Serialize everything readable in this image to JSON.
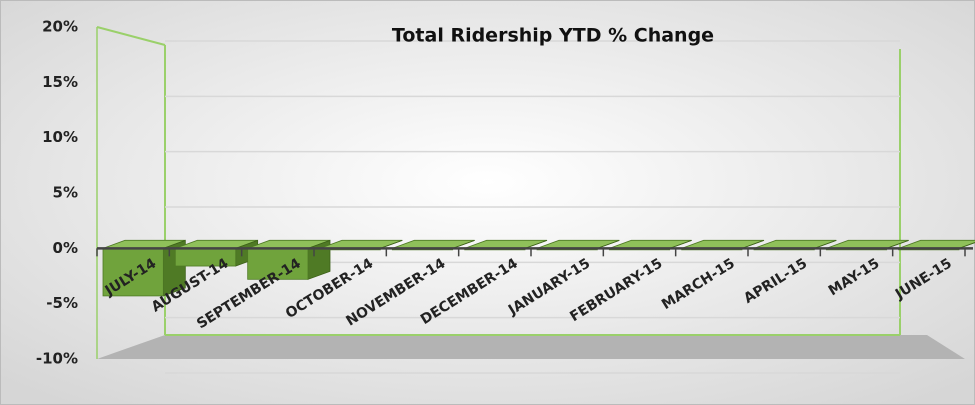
{
  "chart_data": {
    "type": "bar3d",
    "title": "Total Ridership YTD % Change",
    "categories": [
      "JULY-14",
      "AUGUST-14",
      "SEPTEMBER-14",
      "OCTOBER-14",
      "NOVEMBER-14",
      "DECEMBER-14",
      "JANUARY-15",
      "FEBRUARY-15",
      "MARCH-15",
      "APRIL-15",
      "MAY-15",
      "JUNE-15"
    ],
    "values": [
      -4.3,
      -1.6,
      -2.8,
      0,
      0,
      0,
      0,
      0,
      0,
      0,
      0,
      0
    ],
    "color": "#70a33c",
    "ylim": [
      -10,
      20
    ],
    "yticks": [
      {
        "value": -10,
        "label": "-10%"
      },
      {
        "value": -5,
        "label": "-5%"
      },
      {
        "value": 0,
        "label": "0%"
      },
      {
        "value": 5,
        "label": "5%"
      },
      {
        "value": 10,
        "label": "10%"
      },
      {
        "value": 15,
        "label": "15%"
      },
      {
        "value": 20,
        "label": "20%"
      }
    ],
    "grid": true
  }
}
